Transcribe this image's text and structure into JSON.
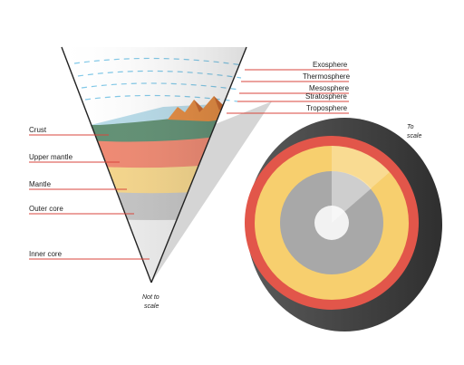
{
  "labels": {
    "left": {
      "crust": "Crust",
      "upper_mantle": "Upper mantle",
      "mantle": "Mantle",
      "outer_core": "Outer core",
      "inner_core": "Inner core"
    },
    "right": {
      "exosphere": "Exosphere",
      "thermosphere": "Thermosphere",
      "mesosphere": "Mesosphere",
      "stratosphere": "Stratosphere",
      "troposphere": "Troposphere"
    }
  },
  "notes": {
    "not_to_scale": [
      "Not to",
      "scale"
    ],
    "to_scale": [
      "To",
      "scale"
    ]
  },
  "colors": {
    "crust": "#5f8f72",
    "upper_mantle": "#f08870",
    "mantle": "#f6d68a",
    "outer_core": "#c4c4c4",
    "inner_core": "#eeeeee",
    "sphere_shell": "#e2564a",
    "sphere_mantle": "#f7cf6e",
    "atmosphere_dash": "#7fc8e8",
    "label_line": "#d9463c",
    "mountains": "#e58a3e"
  }
}
